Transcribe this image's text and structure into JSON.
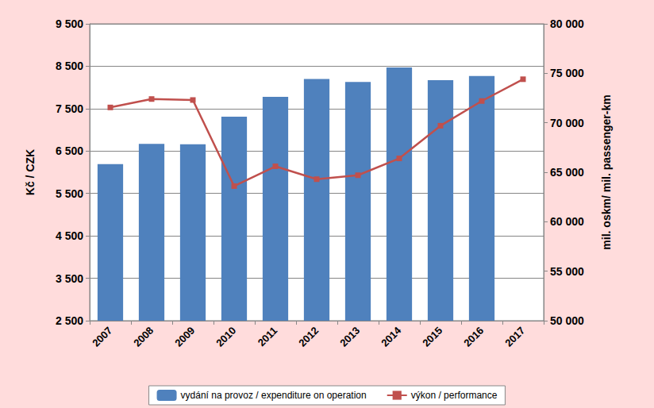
{
  "chart_data": {
    "type": "bar",
    "categories": [
      "2007",
      "2008",
      "2009",
      "2010",
      "2011",
      "2012",
      "2013",
      "2014",
      "2015",
      "2016",
      "2017"
    ],
    "ylabel": "Kč / CZK",
    "y2label": "mil. oskm/ mil. passenger-km",
    "ylim": [
      2500,
      9500
    ],
    "yticks": [
      {
        "value": 2500,
        "label": "2 500"
      },
      {
        "value": 3500,
        "label": "3 500"
      },
      {
        "value": 4500,
        "label": "4 500"
      },
      {
        "value": 5500,
        "label": "5 500"
      },
      {
        "value": 6500,
        "label": "6 500"
      },
      {
        "value": 7500,
        "label": "7 500"
      },
      {
        "value": 8500,
        "label": "8 500"
      },
      {
        "value": 9500,
        "label": "9 500"
      }
    ],
    "y2lim": [
      50000,
      80000
    ],
    "y2ticks": [
      {
        "value": 50000,
        "label": "50 000"
      },
      {
        "value": 55000,
        "label": "55 000"
      },
      {
        "value": 60000,
        "label": "60 000"
      },
      {
        "value": 65000,
        "label": "65 000"
      },
      {
        "value": 70000,
        "label": "70 000"
      },
      {
        "value": 75000,
        "label": "75 000"
      },
      {
        "value": 80000,
        "label": "80 000"
      }
    ],
    "grid": true,
    "legend": "bottom",
    "series": [
      {
        "name": "vydání na provoz / expenditure on operation",
        "type": "bar",
        "color": "#4F81BD",
        "values": [
          6190,
          6670,
          6660,
          7310,
          7780,
          8200,
          8130,
          8470,
          8170,
          8270,
          null
        ]
      },
      {
        "name": "výkon / performance",
        "type": "line",
        "axis": "y2",
        "color": "#C0504D",
        "marker": "square",
        "values": [
          71550,
          72400,
          72300,
          63600,
          65600,
          64300,
          64700,
          66400,
          69700,
          72200,
          74400
        ]
      }
    ]
  }
}
